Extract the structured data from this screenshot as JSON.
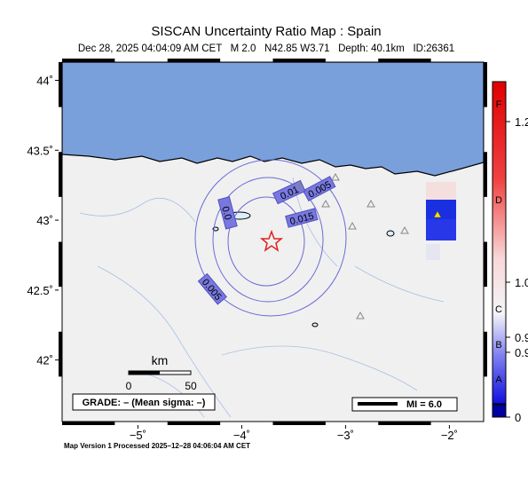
{
  "header": {
    "title": "SISCAN Uncertainty Ratio Map : Spain",
    "subtitle": "Dec 28, 2025 04:04:09 AM CET   M 2.0   N42.85 W3.71   Depth: 40.1km   ID:26361"
  },
  "map": {
    "lon_range": [
      -5.73,
      -1.67
    ],
    "lat_range": [
      41.56,
      44.13
    ],
    "lat_ticks": [
      {
        "value": 44,
        "label": "44˚"
      },
      {
        "value": 43.5,
        "label": "43.5˚"
      },
      {
        "value": 43,
        "label": "43˚"
      },
      {
        "value": 42.5,
        "label": "42.5˚"
      },
      {
        "value": 42,
        "label": "42˚"
      }
    ],
    "lon_ticks": [
      {
        "value": -5,
        "label": "−5˚"
      },
      {
        "value": -4,
        "label": "−4˚"
      },
      {
        "value": -3,
        "label": "−3˚"
      },
      {
        "value": -2,
        "label": "−2˚"
      }
    ],
    "contour_labels": [
      "0.005",
      "0.01",
      "0.015",
      "0.0",
      "0.005"
    ]
  },
  "scale_bar": {
    "unit": "km",
    "start": "0",
    "end": "50"
  },
  "grade": "GRADE: – (Mean sigma: –)",
  "intensity_legend": "MI = 6.0",
  "colorbar": {
    "grades": [
      "F",
      "D",
      "C",
      "B",
      "A"
    ],
    "labels": [
      "1.2",
      "1.0",
      "0.9",
      "0.9",
      "0"
    ]
  },
  "footer": "Map Version 1 Processed 2025–12–28 04:06:04 AM CET"
}
